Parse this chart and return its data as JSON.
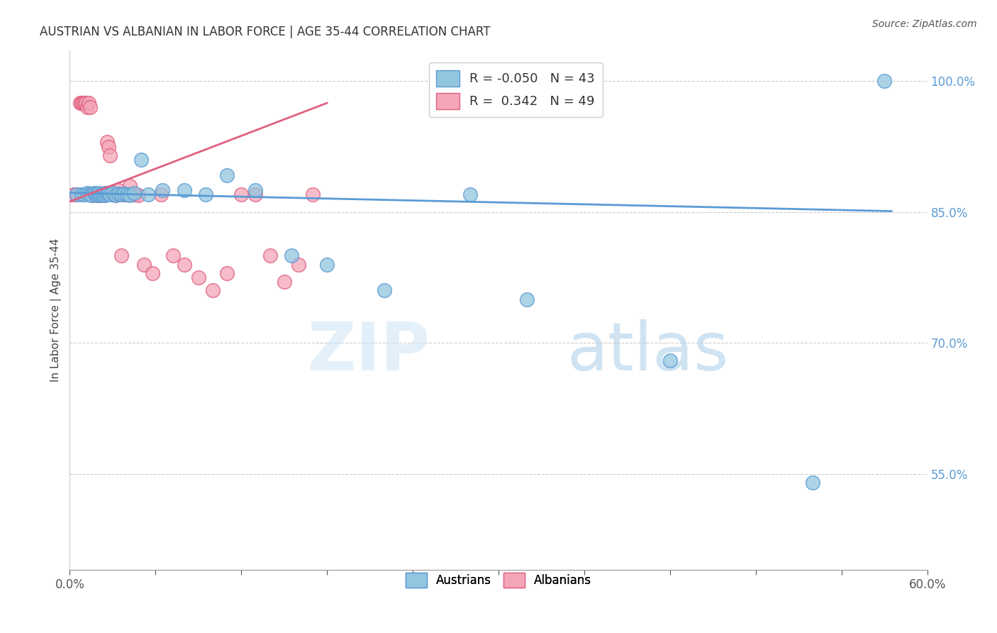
{
  "title": "AUSTRIAN VS ALBANIAN IN LABOR FORCE | AGE 35-44 CORRELATION CHART",
  "source": "Source: ZipAtlas.com",
  "ylabel": "In Labor Force | Age 35-44",
  "xmin": 0.0,
  "xmax": 0.6,
  "ymin": 0.44,
  "ymax": 1.035,
  "right_yticks": [
    1.0,
    0.85,
    0.7,
    0.55
  ],
  "right_yticklabels": [
    "100.0%",
    "85.0%",
    "70.0%",
    "55.0%"
  ],
  "blue_R": -0.05,
  "blue_N": 43,
  "pink_R": 0.342,
  "pink_N": 49,
  "blue_color": "#92c5de",
  "pink_color": "#f4a6b8",
  "blue_line_color": "#5b9bd5",
  "pink_line_color": "#e06080",
  "legend_blue_label": "Austrians",
  "legend_pink_label": "Albanians",
  "watermark_zip": "ZIP",
  "watermark_atlas": "atlas",
  "blue_trend_x": [
    0.0,
    0.575
  ],
  "blue_trend_y": [
    0.872,
    0.851
  ],
  "pink_trend_x": [
    0.0,
    0.18
  ],
  "pink_trend_y": [
    0.862,
    0.975
  ],
  "blue_scatter_x": [
    0.005,
    0.008,
    0.01,
    0.012,
    0.013,
    0.015,
    0.015,
    0.017,
    0.018,
    0.019,
    0.02,
    0.02,
    0.021,
    0.022,
    0.023,
    0.024,
    0.025,
    0.026,
    0.027,
    0.028,
    0.03,
    0.032,
    0.034,
    0.036,
    0.038,
    0.04,
    0.042,
    0.045,
    0.05,
    0.055,
    0.065,
    0.08,
    0.095,
    0.11,
    0.13,
    0.155,
    0.18,
    0.22,
    0.28,
    0.32,
    0.42,
    0.52,
    0.57
  ],
  "blue_scatter_y": [
    0.87,
    0.87,
    0.87,
    0.872,
    0.87,
    0.871,
    0.869,
    0.872,
    0.87,
    0.869,
    0.87,
    0.872,
    0.869,
    0.87,
    0.871,
    0.869,
    0.872,
    0.87,
    0.872,
    0.87,
    0.872,
    0.869,
    0.871,
    0.87,
    0.871,
    0.87,
    0.869,
    0.872,
    0.91,
    0.87,
    0.875,
    0.875,
    0.87,
    0.892,
    0.875,
    0.8,
    0.79,
    0.76,
    0.87,
    0.75,
    0.68,
    0.54,
    1.0
  ],
  "pink_scatter_x": [
    0.003,
    0.005,
    0.007,
    0.008,
    0.009,
    0.01,
    0.011,
    0.012,
    0.013,
    0.014,
    0.015,
    0.015,
    0.016,
    0.017,
    0.018,
    0.019,
    0.02,
    0.02,
    0.021,
    0.022,
    0.023,
    0.024,
    0.025,
    0.026,
    0.027,
    0.028,
    0.03,
    0.032,
    0.034,
    0.036,
    0.038,
    0.04,
    0.042,
    0.045,
    0.048,
    0.052,
    0.058,
    0.064,
    0.072,
    0.08,
    0.09,
    0.1,
    0.11,
    0.12,
    0.13,
    0.14,
    0.15,
    0.16,
    0.17
  ],
  "pink_scatter_y": [
    0.87,
    0.87,
    0.975,
    0.975,
    0.975,
    0.975,
    0.975,
    0.97,
    0.975,
    0.97,
    0.87,
    0.87,
    0.869,
    0.87,
    0.871,
    0.87,
    0.869,
    0.87,
    0.869,
    0.87,
    0.871,
    0.869,
    0.872,
    0.93,
    0.925,
    0.915,
    0.87,
    0.869,
    0.875,
    0.8,
    0.87,
    0.87,
    0.88,
    0.87,
    0.869,
    0.79,
    0.78,
    0.87,
    0.8,
    0.79,
    0.775,
    0.76,
    0.78,
    0.87,
    0.87,
    0.8,
    0.77,
    0.79,
    0.87
  ]
}
